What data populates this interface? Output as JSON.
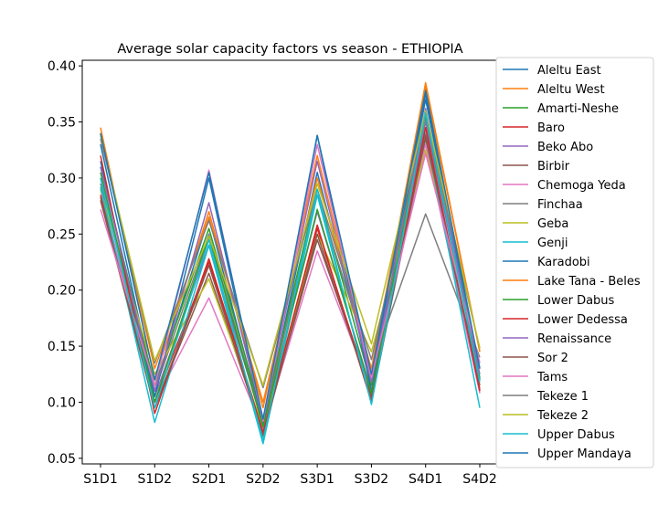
{
  "chart_data": {
    "type": "line",
    "title": "Average solar capacity factors vs season - ETHIOPIA",
    "xlabel": "",
    "ylabel": "",
    "categories": [
      "S1D1",
      "S1D2",
      "S2D1",
      "S2D2",
      "S3D1",
      "S3D2",
      "S4D1",
      "S4D2"
    ],
    "ylim": [
      0.045,
      0.405
    ],
    "yticks": [
      0.05,
      0.1,
      0.15,
      0.2,
      0.25,
      0.3,
      0.35,
      0.4
    ],
    "ytick_labels": [
      "0.05",
      "0.10",
      "0.15",
      "0.20",
      "0.25",
      "0.30",
      "0.35",
      "0.40"
    ],
    "grid": false,
    "legend_position": "outside-right",
    "series": [
      {
        "name": "Aleltu East",
        "color": "#1f77b4",
        "values": [
          0.33,
          0.11,
          0.265,
          0.08,
          0.305,
          0.12,
          0.37,
          0.13
        ]
      },
      {
        "name": "Aleltu West",
        "color": "#ff7f0e",
        "values": [
          0.345,
          0.12,
          0.27,
          0.095,
          0.32,
          0.125,
          0.385,
          0.145
        ]
      },
      {
        "name": "Amarti-Neshe",
        "color": "#2ca02c",
        "values": [
          0.31,
          0.115,
          0.255,
          0.085,
          0.29,
          0.115,
          0.36,
          0.13
        ]
      },
      {
        "name": "Baro",
        "color": "#d62728",
        "values": [
          0.285,
          0.1,
          0.225,
          0.075,
          0.255,
          0.105,
          0.34,
          0.11
        ]
      },
      {
        "name": "Beko Abo",
        "color": "#9467bd",
        "values": [
          0.3,
          0.105,
          0.24,
          0.08,
          0.27,
          0.11,
          0.35,
          0.12
        ]
      },
      {
        "name": "Birbir",
        "color": "#8c564b",
        "values": [
          0.28,
          0.095,
          0.215,
          0.072,
          0.245,
          0.108,
          0.335,
          0.112
        ]
      },
      {
        "name": "Chemoga Yeda",
        "color": "#e377c2",
        "values": [
          0.29,
          0.1,
          0.193,
          0.075,
          0.235,
          0.11,
          0.33,
          0.108
        ]
      },
      {
        "name": "Finchaa",
        "color": "#7f7f7f",
        "values": [
          0.295,
          0.11,
          0.25,
          0.08,
          0.285,
          0.13,
          0.268,
          0.14
        ]
      },
      {
        "name": "Geba",
        "color": "#bcbd22",
        "values": [
          0.29,
          0.125,
          0.21,
          0.078,
          0.25,
          0.145,
          0.325,
          0.135
        ]
      },
      {
        "name": "Genji",
        "color": "#17becf",
        "values": [
          0.292,
          0.082,
          0.24,
          0.063,
          0.285,
          0.1,
          0.34,
          0.095
        ]
      },
      {
        "name": "Karadobi",
        "color": "#1f77b4",
        "values": [
          0.315,
          0.105,
          0.3,
          0.08,
          0.338,
          0.11,
          0.375,
          0.12
        ]
      },
      {
        "name": "Lake Tana - Beles",
        "color": "#ff7f0e",
        "values": [
          0.34,
          0.13,
          0.265,
          0.1,
          0.3,
          0.13,
          0.382,
          0.145
        ]
      },
      {
        "name": "Lower Dabus",
        "color": "#2ca02c",
        "values": [
          0.305,
          0.1,
          0.248,
          0.078,
          0.272,
          0.108,
          0.355,
          0.122
        ]
      },
      {
        "name": "Lower Dedessa",
        "color": "#d62728",
        "values": [
          0.32,
          0.09,
          0.228,
          0.073,
          0.258,
          0.1,
          0.345,
          0.11
        ]
      },
      {
        "name": "Renaissance",
        "color": "#9467bd",
        "values": [
          0.31,
          0.11,
          0.278,
          0.085,
          0.315,
          0.118,
          0.362,
          0.125
        ]
      },
      {
        "name": "Sor 2",
        "color": "#8c564b",
        "values": [
          0.283,
          0.095,
          0.222,
          0.07,
          0.25,
          0.103,
          0.338,
          0.115
        ]
      },
      {
        "name": "Tams",
        "color": "#e377c2",
        "values": [
          0.272,
          0.115,
          0.307,
          0.083,
          0.33,
          0.122,
          0.322,
          0.135
        ]
      },
      {
        "name": "Tekeze 1",
        "color": "#7f7f7f",
        "values": [
          0.335,
          0.135,
          0.262,
          0.113,
          0.29,
          0.138,
          0.352,
          0.148
        ]
      },
      {
        "name": "Tekeze 2",
        "color": "#bcbd22",
        "values": [
          0.338,
          0.137,
          0.248,
          0.115,
          0.295,
          0.152,
          0.36,
          0.148
        ]
      },
      {
        "name": "Upper Dabus",
        "color": "#17becf",
        "values": [
          0.3,
          0.095,
          0.245,
          0.066,
          0.29,
          0.098,
          0.358,
          0.118
        ]
      },
      {
        "name": "Upper Mandaya",
        "color": "#1f77b4",
        "values": [
          0.34,
          0.12,
          0.305,
          0.085,
          0.338,
          0.125,
          0.378,
          0.13
        ]
      }
    ]
  }
}
